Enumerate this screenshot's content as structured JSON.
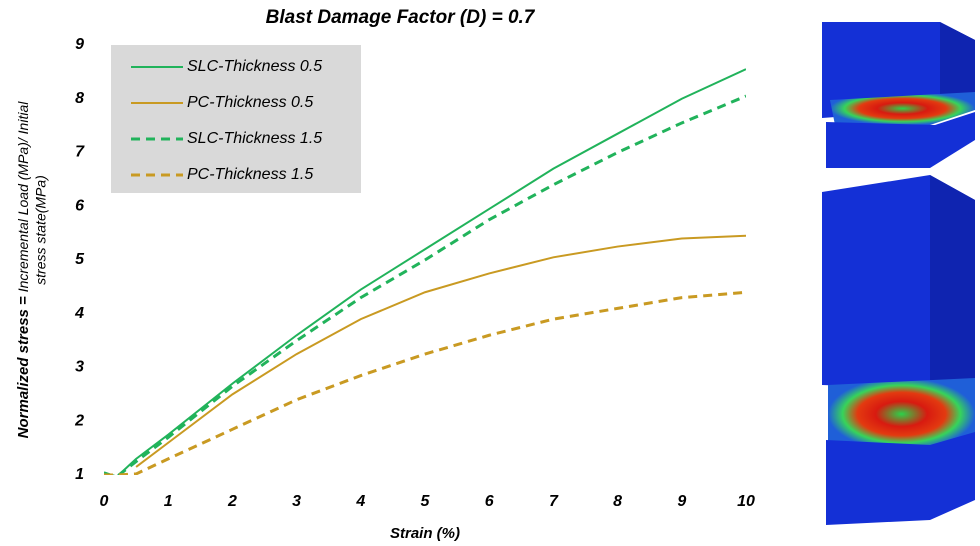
{
  "chart_data": {
    "type": "line",
    "title": "Blast Damage Factor (D) = 0.7",
    "xlabel": "Strain (%)",
    "ylabel": {
      "main": "Normalized stress =",
      "detail": [
        "Incremental Load (MPa)/ Initial",
        "stress state(MPa)"
      ]
    },
    "x": [
      0,
      0.2,
      0.5,
      1,
      2,
      3,
      4,
      5,
      6,
      7,
      8,
      9,
      10
    ],
    "series": [
      {
        "name": "SLC-Thickness 0.5",
        "color": "#21b35b",
        "dashed": false,
        "values": [
          1.05,
          0.97,
          1.3,
          1.75,
          2.7,
          3.6,
          4.45,
          5.2,
          5.95,
          6.7,
          7.35,
          8.0,
          8.55
        ]
      },
      {
        "name": "PC-Thickness 0.5",
        "color": "#c99a22",
        "dashed": false,
        "values": [
          null,
          null,
          1.15,
          1.6,
          2.5,
          3.25,
          3.9,
          4.4,
          4.75,
          5.05,
          5.25,
          5.4,
          5.45
        ]
      },
      {
        "name": "SLC-Thickness 1.5",
        "color": "#21b35b",
        "dashed": true,
        "values": [
          1.0,
          0.97,
          1.25,
          1.7,
          2.65,
          3.5,
          4.3,
          5.0,
          5.75,
          6.4,
          7.0,
          7.55,
          8.05
        ]
      },
      {
        "name": "PC-Thickness 1.5",
        "color": "#c99a22",
        "dashed": true,
        "values": [
          1.0,
          1.0,
          1.02,
          1.3,
          1.85,
          2.4,
          2.85,
          3.25,
          3.6,
          3.9,
          4.1,
          4.3,
          4.4
        ]
      }
    ],
    "xlim": [
      0,
      10
    ],
    "xticks": [
      0,
      1,
      2,
      3,
      4,
      5,
      6,
      7,
      8,
      9,
      10
    ],
    "ylim": [
      1,
      9
    ],
    "yticks": [
      1,
      2,
      3,
      4,
      5,
      6,
      7,
      8,
      9
    ],
    "grid": false,
    "legend": "upper left"
  }
}
